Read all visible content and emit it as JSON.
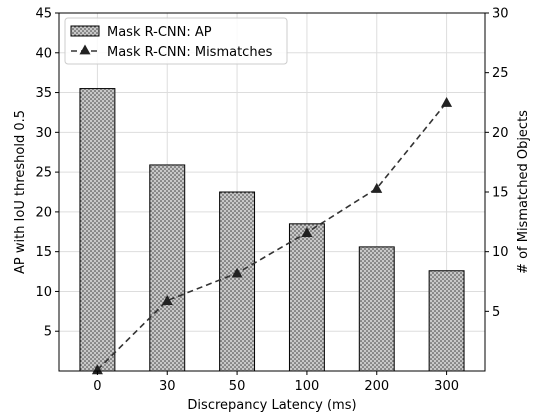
{
  "chart_data": {
    "type": "bar",
    "categories": [
      "0",
      "30",
      "50",
      "100",
      "200",
      "300"
    ],
    "series": [
      {
        "name": "Mask R-CNN: AP",
        "type": "bar",
        "axis": "left",
        "values": [
          35.5,
          25.9,
          22.5,
          18.5,
          15.6,
          12.6
        ]
      },
      {
        "name": "Mask R-CNN: Mismatches",
        "type": "line",
        "axis": "right",
        "values": [
          0.1,
          5.9,
          8.2,
          11.6,
          15.3,
          22.5
        ]
      }
    ],
    "xlabel": "Discrepancy Latency (ms)",
    "ylabel": "AP with IoU threshold 0.5",
    "y2label": "# of Mismatched Objects",
    "ylim": [
      0,
      45
    ],
    "y2lim": [
      0,
      30
    ],
    "yticks": [
      "5",
      "10",
      "15",
      "20",
      "25",
      "30",
      "35",
      "40",
      "45"
    ],
    "y2ticks": [
      "5",
      "10",
      "15",
      "20",
      "25",
      "30"
    ],
    "grid": true,
    "legend": "top-left",
    "colors": {
      "bar_fill": "#c8c8c8",
      "bar_edge": "#000000",
      "line": "#333333",
      "grid": "#dddddd"
    }
  }
}
